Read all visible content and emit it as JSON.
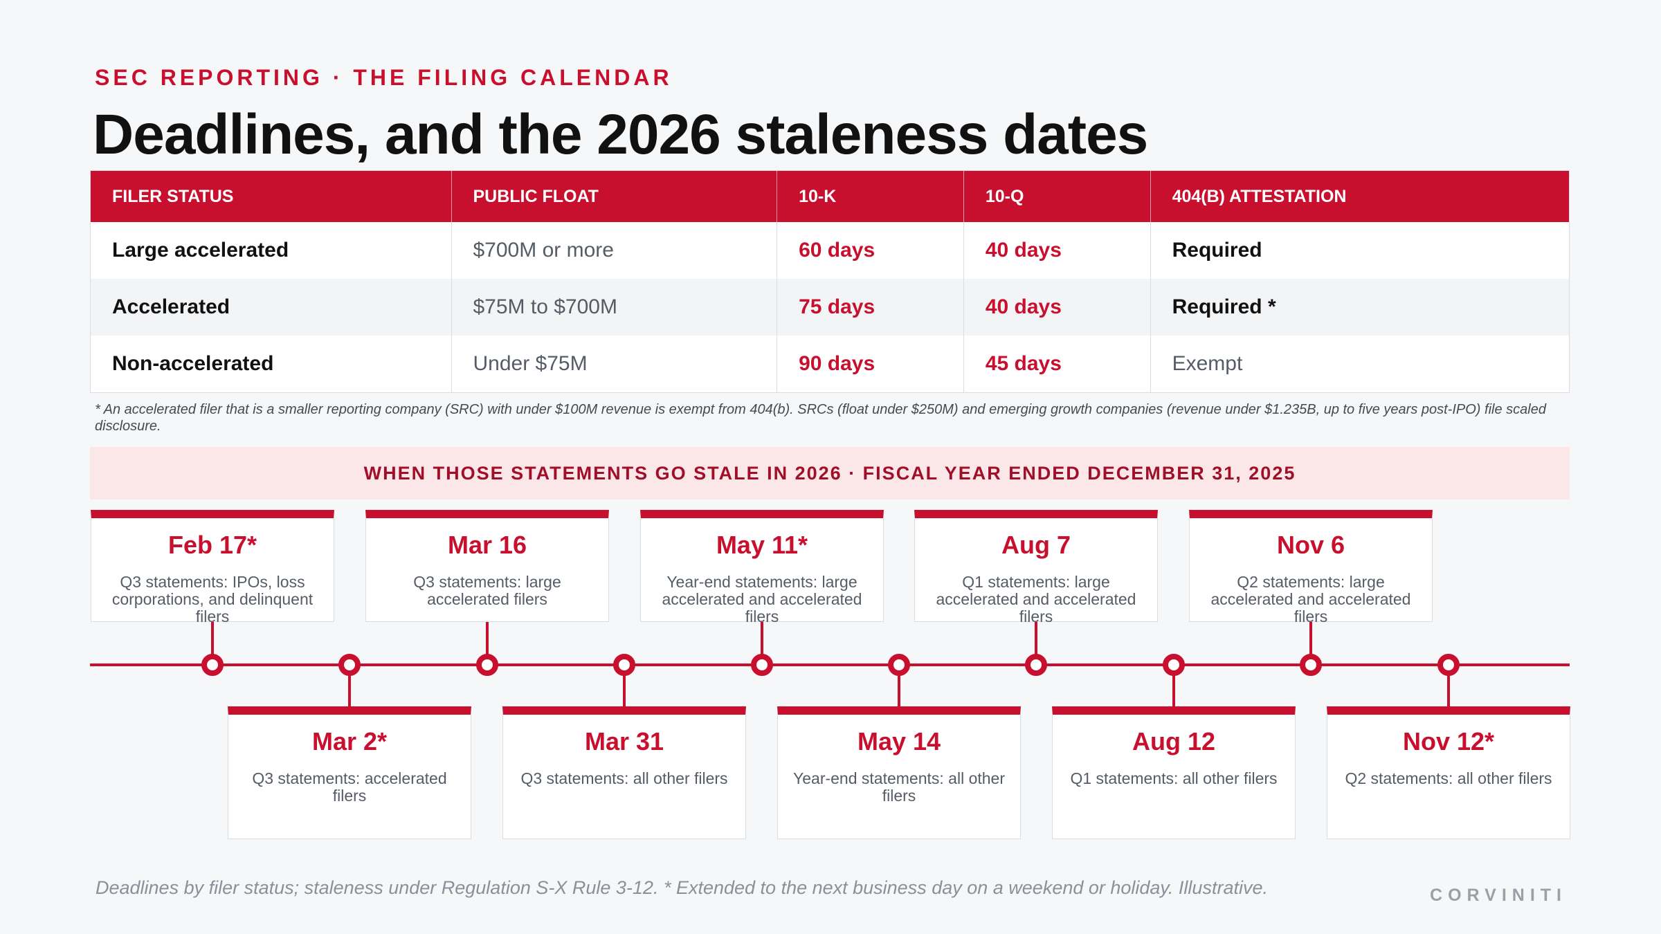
{
  "header": {
    "eyebrow": "SEC REPORTING · THE FILING CALENDAR",
    "title": "Deadlines, and the 2026 staleness dates"
  },
  "table": {
    "columns": [
      "FILER STATUS",
      "PUBLIC FLOAT",
      "10-K",
      "10-Q",
      "404(B) ATTESTATION"
    ],
    "rows": [
      {
        "status": "Large accelerated",
        "float": "$700M or more",
        "k10": "60 days",
        "q10": "40 days",
        "attestation": "Required"
      },
      {
        "status": "Accelerated",
        "float": "$75M to $700M",
        "k10": "75 days",
        "q10": "40 days",
        "attestation": "Required *"
      },
      {
        "status": "Non-accelerated",
        "float": "Under $75M",
        "k10": "90 days",
        "q10": "45 days",
        "attestation": "Exempt"
      }
    ]
  },
  "footnote": "* An accelerated filer that is a smaller reporting company (SRC) with under $100M revenue is exempt from 404(b). SRCs (float under $250M) and emerging growth companies (revenue under $1.235B, up to five years post-IPO) file scaled disclosure.",
  "banner": "WHEN THOSE STATEMENTS GO STALE IN 2026 · FISCAL YEAR ENDED DECEMBER 31, 2025",
  "timeline": {
    "events": [
      {
        "date": "Feb 17*",
        "desc": "Q3 statements: IPOs, loss corporations, and delinquent filers"
      },
      {
        "date": "Mar 2*",
        "desc": "Q3 statements: accelerated filers"
      },
      {
        "date": "Mar 16",
        "desc": "Q3 statements: large accelerated filers"
      },
      {
        "date": "Mar 31",
        "desc": "Q3 statements: all other filers"
      },
      {
        "date": "May 11*",
        "desc": "Year-end statements: large accelerated and accelerated filers"
      },
      {
        "date": "May 14",
        "desc": "Year-end statements: all other filers"
      },
      {
        "date": "Aug 7",
        "desc": "Q1 statements: large accelerated and accelerated filers"
      },
      {
        "date": "Aug 12",
        "desc": "Q1 statements: all other filers"
      },
      {
        "date": "Nov 6",
        "desc": "Q2 statements: large accelerated and accelerated filers"
      },
      {
        "date": "Nov 12*",
        "desc": "Q2 statements: all other filers"
      }
    ]
  },
  "footer": {
    "source": "Deadlines by filer status; staleness under Regulation S-X Rule 3-12. * Extended to the next business day on a weekend or holiday. Illustrative.",
    "brand": "CORVINITI"
  },
  "colors": {
    "accent": "#c8102e",
    "banner_bg": "#fbe6e8",
    "background": "#f6f7f9"
  }
}
